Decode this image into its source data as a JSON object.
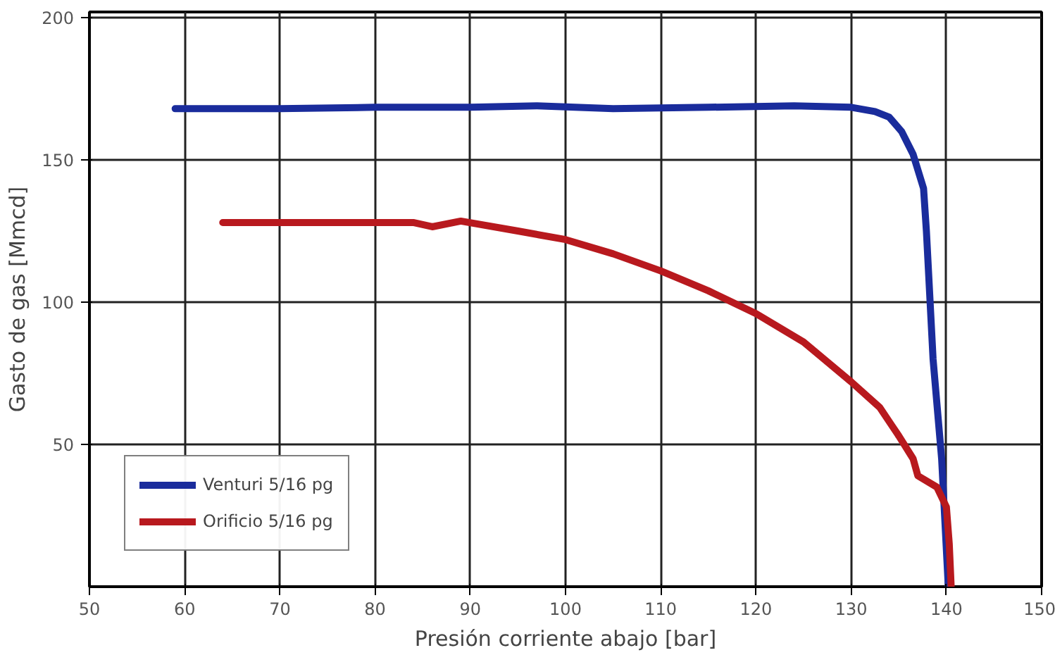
{
  "chart_data": {
    "type": "line",
    "xlabel": "Presión corriente abajo [bar]",
    "ylabel": "Gasto de gas [Mmcd]",
    "xlim": [
      50,
      150
    ],
    "ylim": [
      0,
      202
    ],
    "xticks": [
      50,
      60,
      70,
      80,
      90,
      100,
      110,
      120,
      130,
      140,
      150
    ],
    "yticks": [
      50,
      100,
      150,
      200
    ],
    "grid": true,
    "legend": "bottom left",
    "marker": "none",
    "line_style": "solid",
    "series": [
      {
        "name": "Venturi 5/16 pg",
        "color": "#1a2c9c",
        "x": [
          59,
          70,
          80,
          90,
          97,
          105,
          115,
          124,
          130,
          132.5,
          134,
          135.3,
          136.5,
          137.6,
          137.9,
          138.6,
          139.5,
          140.2
        ],
        "values": [
          168,
          168,
          168.5,
          168.5,
          169,
          168,
          168.5,
          169,
          168.5,
          167,
          165,
          160,
          152,
          140,
          125,
          80,
          45,
          0
        ]
      },
      {
        "name": "Orificio 5/16 pg",
        "color": "#b8191e",
        "x": [
          64,
          70,
          80,
          84,
          86,
          89,
          95,
          100,
          105,
          110,
          115,
          120,
          125,
          130,
          133,
          135,
          136.5,
          137,
          139,
          140,
          140.3,
          140.5
        ],
        "values": [
          128,
          128,
          128,
          128,
          126.5,
          128.5,
          125,
          122,
          117,
          111,
          104,
          96,
          86,
          72,
          63,
          53,
          45,
          39,
          35,
          28,
          15,
          0
        ]
      }
    ]
  }
}
